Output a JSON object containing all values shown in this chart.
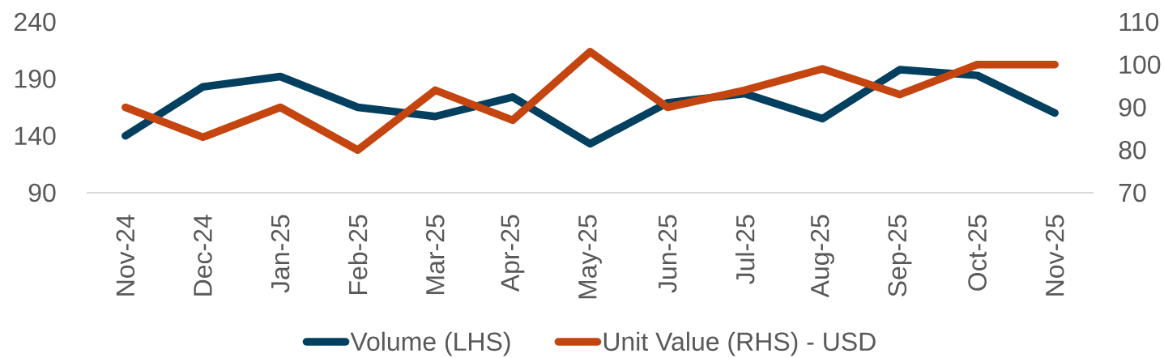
{
  "chart_data": {
    "type": "line",
    "categories": [
      "Nov-24",
      "Dec-24",
      "Jan-25",
      "Feb-25",
      "Mar-25",
      "Apr-25",
      "May-25",
      "Jun-25",
      "Jul-25",
      "Aug-25",
      "Sep-25",
      "Oct-25",
      "Nov-25"
    ],
    "series": [
      {
        "name": "Volume (LHS)",
        "color": "#03405f",
        "values": [
          140,
          183,
          192,
          165,
          157,
          174,
          133,
          169,
          177,
          155,
          198,
          193,
          160
        ]
      },
      {
        "name": "Unit Value (RHS) - USD",
        "color": "#c4450f",
        "axis": "y2",
        "values": [
          90,
          83,
          90,
          80,
          94,
          87,
          103,
          90,
          94,
          99,
          93,
          100,
          100
        ]
      }
    ],
    "ylim": [
      90,
      240
    ],
    "yticks": [
      90,
      140,
      190,
      240
    ],
    "y2lim": [
      70,
      110
    ],
    "y2ticks": [
      70,
      80,
      90,
      100,
      110
    ],
    "legend": "bottom",
    "marker": "none",
    "line_style": "solid"
  }
}
